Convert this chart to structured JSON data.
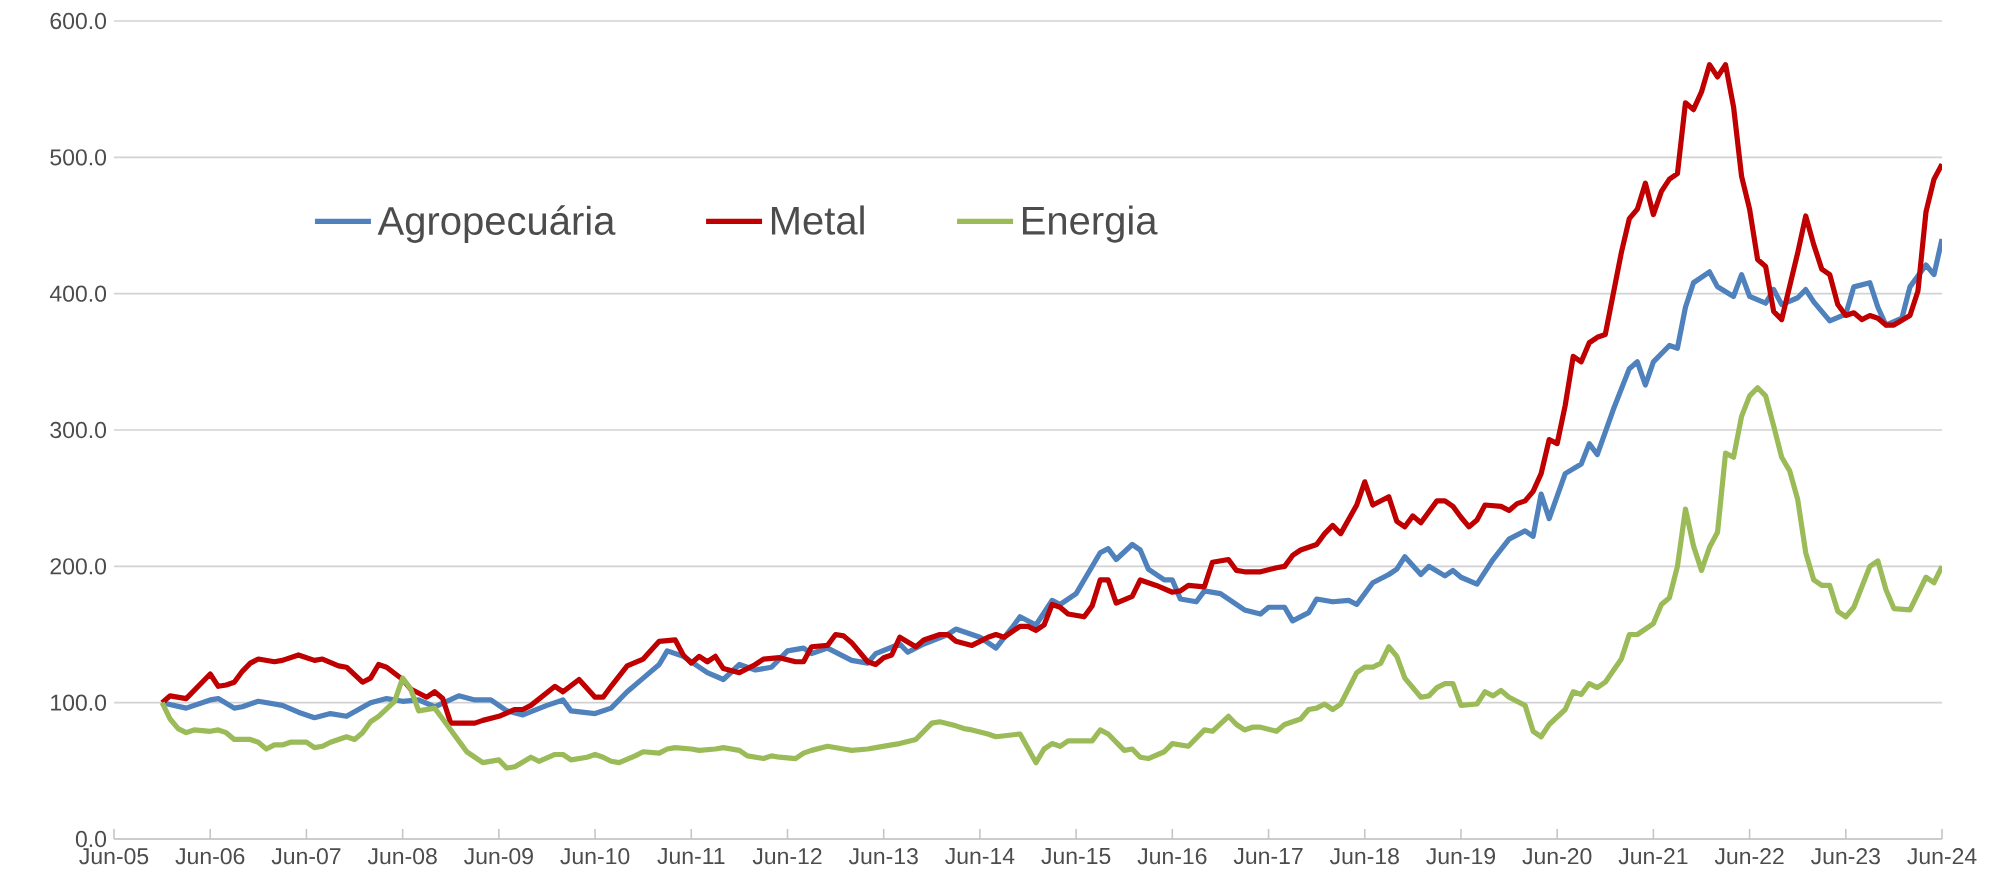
{
  "chart_data": {
    "type": "line",
    "grid": "y",
    "legend": "top left",
    "xlim": [
      "2005-06",
      "2024-06"
    ],
    "xticks": [
      {
        "value": "2005-06",
        "label": "Jun-05"
      },
      {
        "value": "2006-06",
        "label": "Jun-06"
      },
      {
        "value": "2007-06",
        "label": "Jun-07"
      },
      {
        "value": "2008-06",
        "label": "Jun-08"
      },
      {
        "value": "2009-06",
        "label": "Jun-09"
      },
      {
        "value": "2010-06",
        "label": "Jun-10"
      },
      {
        "value": "2011-06",
        "label": "Jun-11"
      },
      {
        "value": "2012-06",
        "label": "Jun-12"
      },
      {
        "value": "2013-06",
        "label": "Jun-13"
      },
      {
        "value": "2014-06",
        "label": "Jun-14"
      },
      {
        "value": "2015-06",
        "label": "Jun-15"
      },
      {
        "value": "2016-06",
        "label": "Jun-16"
      },
      {
        "value": "2017-06",
        "label": "Jun-17"
      },
      {
        "value": "2018-06",
        "label": "Jun-18"
      },
      {
        "value": "2019-06",
        "label": "Jun-19"
      },
      {
        "value": "2020-06",
        "label": "Jun-20"
      },
      {
        "value": "2021-06",
        "label": "Jun-21"
      },
      {
        "value": "2022-06",
        "label": "Jun-22"
      },
      {
        "value": "2023-06",
        "label": "Jun-23"
      },
      {
        "value": "2024-06",
        "label": "Jun-24"
      }
    ],
    "ylim": [
      0,
      600
    ],
    "yticks": [
      {
        "value": 0,
        "label": "0.0"
      },
      {
        "value": 100,
        "label": "100.0"
      },
      {
        "value": 200,
        "label": "200.0"
      },
      {
        "value": 300,
        "label": "300.0"
      },
      {
        "value": 400,
        "label": "400.0"
      },
      {
        "value": 500,
        "label": "500.0"
      },
      {
        "value": 600,
        "label": "600.0"
      }
    ],
    "series": [
      {
        "name": "Agropecuária",
        "color": "#4f81bd",
        "x": [
          "2005-12",
          "2006-03",
          "2006-06",
          "2006-07",
          "2006-09",
          "2006-10",
          "2006-12",
          "2007-03",
          "2007-05",
          "2007-07",
          "2007-09",
          "2007-11",
          "2008-02",
          "2008-04",
          "2008-06",
          "2008-08",
          "2008-10",
          "2009-01",
          "2009-03",
          "2009-05",
          "2009-07",
          "2009-09",
          "2009-12",
          "2010-02",
          "2010-03",
          "2010-06",
          "2010-08",
          "2010-10",
          "2010-12",
          "2011-02",
          "2011-03",
          "2011-05",
          "2011-08",
          "2011-10",
          "2011-12",
          "2012-02",
          "2012-04",
          "2012-06",
          "2012-08",
          "2012-09",
          "2012-11",
          "2013-02",
          "2013-04",
          "2013-05",
          "2013-08",
          "2013-09",
          "2013-11",
          "2014-02",
          "2014-03",
          "2014-06",
          "2014-08",
          "2014-10",
          "2014-11",
          "2015-01",
          "2015-03",
          "2015-04",
          "2015-06",
          "2015-07",
          "2015-09",
          "2015-10",
          "2015-11",
          "2016-01",
          "2016-02",
          "2016-03",
          "2016-05",
          "2016-06",
          "2016-07",
          "2016-09",
          "2016-10",
          "2016-12",
          "2017-03",
          "2017-05",
          "2017-06",
          "2017-08",
          "2017-09",
          "2017-11",
          "2017-12",
          "2018-02",
          "2018-04",
          "2018-05",
          "2018-07",
          "2018-09",
          "2018-10",
          "2018-11",
          "2019-01",
          "2019-02",
          "2019-04",
          "2019-05",
          "2019-06",
          "2019-08",
          "2019-10",
          "2019-12",
          "2020-02",
          "2020-03",
          "2020-04",
          "2020-05",
          "2020-07",
          "2020-09",
          "2020-10",
          "2020-11",
          "2021-01",
          "2021-03",
          "2021-04",
          "2021-05",
          "2021-06",
          "2021-08",
          "2021-09",
          "2021-10",
          "2021-11",
          "2022-01",
          "2022-02",
          "2022-04",
          "2022-05",
          "2022-06",
          "2022-08",
          "2022-09",
          "2022-10",
          "2022-12",
          "2023-01",
          "2023-02",
          "2023-04",
          "2023-06",
          "2023-07",
          "2023-09",
          "2023-10",
          "2023-11",
          "2024-01",
          "2024-02",
          "2024-04",
          "2024-05",
          "2024-06"
        ],
        "values": [
          100,
          96,
          102,
          103,
          96,
          97,
          101,
          98,
          93,
          89,
          92,
          90,
          100,
          103,
          101,
          102,
          97,
          105,
          102,
          102,
          94,
          91,
          98,
          102,
          94,
          92,
          96,
          108,
          118,
          128,
          138,
          134,
          122,
          117,
          128,
          124,
          126,
          138,
          140,
          136,
          140,
          131,
          129,
          136,
          143,
          137,
          143,
          150,
          154,
          148,
          140,
          155,
          163,
          157,
          175,
          172,
          180,
          190,
          210,
          213,
          205,
          216,
          212,
          198,
          190,
          190,
          176,
          174,
          182,
          180,
          168,
          165,
          170,
          170,
          160,
          166,
          176,
          174,
          175,
          172,
          188,
          194,
          198,
          207,
          194,
          200,
          193,
          197,
          192,
          187,
          205,
          220,
          226,
          222,
          253,
          235,
          268,
          275,
          290,
          282,
          315,
          345,
          350,
          333,
          350,
          362,
          360,
          390,
          408,
          416,
          405,
          398,
          414,
          398,
          393,
          403,
          392,
          397,
          403,
          394,
          380,
          385,
          405,
          408,
          390,
          377,
          382,
          405,
          421,
          414,
          440
        ]
      },
      {
        "name": "Metal",
        "color": "#c00000",
        "x": [
          "2005-12",
          "2006-01",
          "2006-03",
          "2006-06",
          "2006-07",
          "2006-08",
          "2006-09",
          "2006-10",
          "2006-11",
          "2006-12",
          "2007-02",
          "2007-03",
          "2007-05",
          "2007-07",
          "2007-08",
          "2007-10",
          "2007-11",
          "2008-01",
          "2008-02",
          "2008-03",
          "2008-04",
          "2008-06",
          "2008-07",
          "2008-09",
          "2008-10",
          "2008-11",
          "2008-12",
          "2009-03",
          "2009-04",
          "2009-06",
          "2009-08",
          "2009-09",
          "2009-10",
          "2010-01",
          "2010-02",
          "2010-04",
          "2010-06",
          "2010-07",
          "2010-08",
          "2010-10",
          "2010-12",
          "2011-02",
          "2011-04",
          "2011-05",
          "2011-06",
          "2011-07",
          "2011-08",
          "2011-09",
          "2011-10",
          "2011-12",
          "2012-02",
          "2012-03",
          "2012-05",
          "2012-07",
          "2012-08",
          "2012-09",
          "2012-11",
          "2012-12",
          "2013-01",
          "2013-02",
          "2013-04",
          "2013-05",
          "2013-06",
          "2013-07",
          "2013-08",
          "2013-10",
          "2013-11",
          "2014-01",
          "2014-02",
          "2014-03",
          "2014-05",
          "2014-06",
          "2014-07",
          "2014-08",
          "2014-09",
          "2014-11",
          "2014-12",
          "2015-01",
          "2015-02",
          "2015-03",
          "2015-04",
          "2015-05",
          "2015-07",
          "2015-08",
          "2015-09",
          "2015-10",
          "2015-11",
          "2016-01",
          "2016-02",
          "2016-04",
          "2016-06",
          "2016-07",
          "2016-08",
          "2016-10",
          "2016-11",
          "2017-01",
          "2017-02",
          "2017-03",
          "2017-05",
          "2017-07",
          "2017-08",
          "2017-09",
          "2017-10",
          "2017-12",
          "2018-01",
          "2018-02",
          "2018-03",
          "2018-05",
          "2018-06",
          "2018-07",
          "2018-09",
          "2018-10",
          "2018-11",
          "2018-12",
          "2019-01",
          "2019-03",
          "2019-04",
          "2019-05",
          "2019-06",
          "2019-07",
          "2019-08",
          "2019-09",
          "2019-11",
          "2019-12",
          "2020-01",
          "2020-02",
          "2020-03",
          "2020-04",
          "2020-05",
          "2020-06",
          "2020-07",
          "2020-08",
          "2020-09",
          "2020-10",
          "2020-11",
          "2020-12",
          "2021-01",
          "2021-02",
          "2021-03",
          "2021-04",
          "2021-05",
          "2021-06",
          "2021-07",
          "2021-08",
          "2021-09",
          "2021-10",
          "2021-11",
          "2021-12",
          "2022-01",
          "2022-02",
          "2022-03",
          "2022-04",
          "2022-05",
          "2022-06",
          "2022-07",
          "2022-08",
          "2022-09",
          "2022-10",
          "2022-12",
          "2023-01",
          "2023-02",
          "2023-03",
          "2023-04",
          "2023-05",
          "2023-06",
          "2023-07",
          "2023-08",
          "2023-09",
          "2023-10",
          "2023-11",
          "2023-12",
          "2024-02",
          "2024-03",
          "2024-04",
          "2024-05",
          "2024-06"
        ],
        "values": [
          100,
          105,
          103,
          121,
          112,
          113,
          115,
          123,
          129,
          132,
          130,
          131,
          135,
          131,
          132,
          127,
          126,
          115,
          118,
          128,
          126,
          117,
          110,
          104,
          108,
          103,
          85,
          85,
          87,
          90,
          95,
          95,
          98,
          112,
          108,
          117,
          104,
          104,
          112,
          127,
          132,
          145,
          146,
          135,
          129,
          134,
          130,
          134,
          125,
          122,
          128,
          132,
          133,
          130,
          130,
          141,
          142,
          150,
          149,
          144,
          130,
          128,
          133,
          135,
          148,
          141,
          146,
          150,
          150,
          145,
          142,
          145,
          148,
          150,
          148,
          156,
          156,
          153,
          157,
          172,
          170,
          165,
          163,
          171,
          190,
          190,
          173,
          178,
          190,
          186,
          181,
          182,
          186,
          185,
          203,
          205,
          197,
          196,
          196,
          199,
          200,
          208,
          212,
          216,
          224,
          230,
          224,
          245,
          262,
          245,
          251,
          233,
          229,
          237,
          232,
          248,
          248,
          244,
          236,
          229,
          234,
          245,
          244,
          241,
          246,
          248,
          255,
          268,
          293,
          290,
          318,
          354,
          350,
          364,
          368,
          370,
          400,
          430,
          455,
          462,
          481,
          458,
          475,
          484,
          488,
          540,
          535,
          548,
          568,
          559,
          568,
          537,
          486,
          462,
          425,
          420,
          387,
          381,
          430,
          457,
          436,
          418,
          414,
          392,
          384,
          386,
          381,
          384,
          382,
          377,
          377,
          384,
          402,
          460,
          484,
          495
        ]
      },
      {
        "name": "Energia",
        "color": "#9bbb59",
        "x": [
          "2005-12",
          "2006-01",
          "2006-02",
          "2006-03",
          "2006-04",
          "2006-06",
          "2006-07",
          "2006-08",
          "2006-09",
          "2006-11",
          "2006-12",
          "2007-01",
          "2007-02",
          "2007-03",
          "2007-04",
          "2007-06",
          "2007-07",
          "2007-08",
          "2007-09",
          "2007-11",
          "2007-12",
          "2008-01",
          "2008-02",
          "2008-03",
          "2008-05",
          "2008-06",
          "2008-07",
          "2008-08",
          "2008-10",
          "2008-11",
          "2009-01",
          "2009-02",
          "2009-04",
          "2009-06",
          "2009-07",
          "2009-08",
          "2009-10",
          "2009-11",
          "2010-01",
          "2010-02",
          "2010-03",
          "2010-05",
          "2010-06",
          "2010-07",
          "2010-08",
          "2010-09",
          "2010-11",
          "2010-12",
          "2011-02",
          "2011-03",
          "2011-04",
          "2011-06",
          "2011-07",
          "2011-09",
          "2011-10",
          "2011-12",
          "2012-01",
          "2012-03",
          "2012-04",
          "2012-05",
          "2012-07",
          "2012-08",
          "2012-09",
          "2012-11",
          "2013-01",
          "2013-02",
          "2013-04",
          "2013-05",
          "2013-07",
          "2013-08",
          "2013-10",
          "2013-12",
          "2014-01",
          "2014-03",
          "2014-04",
          "2014-05",
          "2014-07",
          "2014-08",
          "2014-11",
          "2015-01",
          "2015-02",
          "2015-03",
          "2015-04",
          "2015-05",
          "2015-08",
          "2015-09",
          "2015-10",
          "2015-12",
          "2016-01",
          "2016-02",
          "2016-03",
          "2016-05",
          "2016-06",
          "2016-08",
          "2016-10",
          "2016-11",
          "2017-01",
          "2017-02",
          "2017-03",
          "2017-04",
          "2017-05",
          "2017-07",
          "2017-08",
          "2017-10",
          "2017-11",
          "2017-12",
          "2018-01",
          "2018-02",
          "2018-03",
          "2018-05",
          "2018-06",
          "2018-07",
          "2018-08",
          "2018-09",
          "2018-10",
          "2018-11",
          "2019-01",
          "2019-02",
          "2019-03",
          "2019-04",
          "2019-05",
          "2019-06",
          "2019-08",
          "2019-09",
          "2019-10",
          "2019-11",
          "2019-12",
          "2020-02",
          "2020-03",
          "2020-04",
          "2020-05",
          "2020-07",
          "2020-08",
          "2020-09",
          "2020-10",
          "2020-11",
          "2020-12",
          "2021-02",
          "2021-03",
          "2021-04",
          "2021-06",
          "2021-07",
          "2021-08",
          "2021-09",
          "2021-10",
          "2021-11",
          "2021-12",
          "2022-01",
          "2022-02",
          "2022-03",
          "2022-04",
          "2022-05",
          "2022-06",
          "2022-07",
          "2022-08",
          "2022-09",
          "2022-10",
          "2022-11",
          "2022-12",
          "2023-01",
          "2023-02",
          "2023-03",
          "2023-04",
          "2023-05",
          "2023-06",
          "2023-07",
          "2023-09",
          "2023-10",
          "2023-11",
          "2023-12",
          "2024-02",
          "2024-03",
          "2024-04",
          "2024-05",
          "2024-06"
        ],
        "values": [
          100,
          88,
          81,
          78,
          80,
          79,
          80,
          78,
          73,
          73,
          71,
          66,
          69,
          69,
          71,
          71,
          67,
          68,
          71,
          75,
          73,
          78,
          86,
          90,
          101,
          118,
          110,
          94,
          96,
          88,
          72,
          64,
          56,
          58,
          52,
          53,
          60,
          57,
          62,
          62,
          58,
          60,
          62,
          60,
          57,
          56,
          61,
          64,
          63,
          66,
          67,
          66,
          65,
          66,
          67,
          65,
          61,
          59,
          61,
          60,
          59,
          63,
          65,
          68,
          66,
          65,
          66,
          67,
          69,
          70,
          73,
          85,
          86,
          83,
          81,
          80,
          77,
          75,
          77,
          56,
          66,
          70,
          68,
          72,
          72,
          80,
          77,
          65,
          66,
          60,
          59,
          64,
          70,
          68,
          80,
          79,
          90,
          84,
          80,
          82,
          82,
          79,
          84,
          88,
          95,
          96,
          99,
          95,
          99,
          122,
          126,
          126,
          129,
          141,
          134,
          118,
          104,
          105,
          111,
          114,
          114,
          98,
          99,
          108,
          105,
          109,
          104,
          98,
          79,
          75,
          84,
          95,
          108,
          106,
          114,
          111,
          115,
          132,
          150,
          150,
          158,
          172,
          177,
          200,
          242,
          215,
          197,
          214,
          225,
          283,
          280,
          310,
          325,
          331,
          325,
          303,
          280,
          270,
          249,
          210,
          190,
          186,
          186,
          167,
          163,
          170,
          200,
          204,
          183,
          169,
          168,
          180,
          192,
          188,
          200
        ]
      }
    ]
  }
}
